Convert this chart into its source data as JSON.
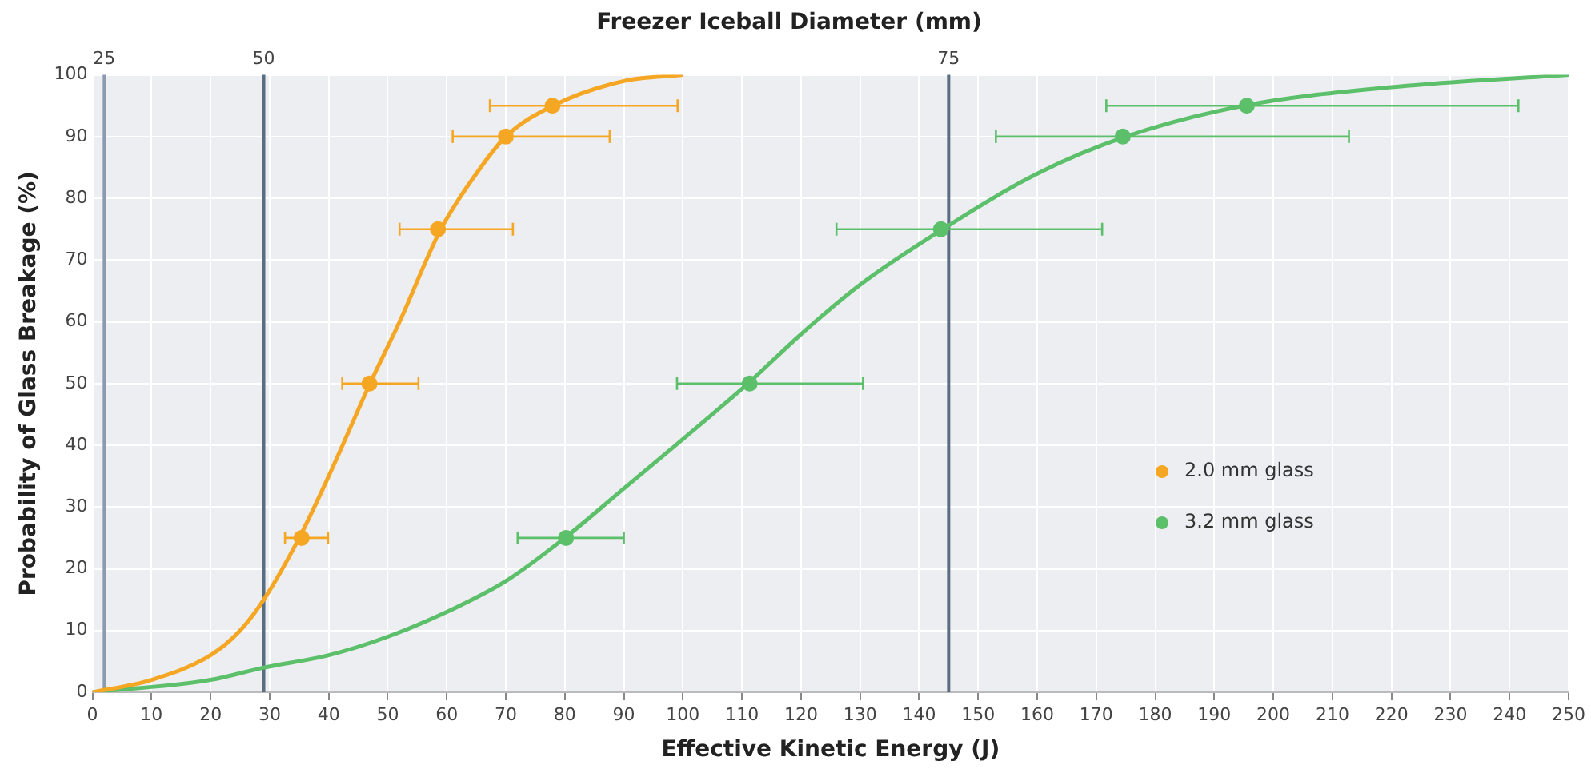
{
  "chart_data": {
    "type": "line",
    "title": "Freezer Iceball Diameter (mm)",
    "xlabel": "Effective Kinetic Energy (J)",
    "ylabel": "Probability of Glass Breakage (%)",
    "xlim": [
      0,
      250
    ],
    "xticks": [
      0,
      10,
      20,
      30,
      40,
      50,
      60,
      70,
      80,
      90,
      100,
      110,
      120,
      130,
      140,
      150,
      160,
      170,
      180,
      190,
      200,
      210,
      220,
      230,
      240,
      250
    ],
    "ylim": [
      0,
      100
    ],
    "yticks": [
      0,
      10,
      20,
      30,
      40,
      50,
      60,
      70,
      80,
      90,
      100
    ],
    "grid": true,
    "legend": "bottom right",
    "line_style": "solid",
    "ref_lines": [
      {
        "axis": "x",
        "value": 2,
        "color": "#8a9bb0"
      },
      {
        "axis": "x",
        "value": 29,
        "color": "#5a6e82"
      },
      {
        "axis": "x",
        "value": 145,
        "color": "#5a6e82"
      }
    ],
    "annotations": [
      {
        "text": "25",
        "x": 2,
        "y": 100
      },
      {
        "text": "50",
        "x": 29,
        "y": 100
      },
      {
        "text": "75",
        "x": 145,
        "y": 100
      }
    ],
    "series": [
      {
        "type": "line",
        "marker": "none",
        "color": "#f5a623",
        "x": [
          0,
          10,
          20,
          25,
          29,
          35,
          40,
          47,
          52,
          59,
          65,
          70,
          78,
          90,
          100
        ],
        "values": [
          0,
          2,
          6,
          10,
          15,
          25,
          35,
          50,
          60,
          75,
          84,
          90,
          95,
          99,
          100
        ]
      },
      {
        "type": "line",
        "marker": "none",
        "color": "#5cbf6a",
        "x": [
          0,
          20,
          29,
          40,
          50,
          60,
          70,
          80,
          90,
          100,
          111,
          120,
          130,
          144,
          160,
          175,
          195,
          220,
          250
        ],
        "values": [
          0,
          2,
          4,
          6,
          9,
          13,
          18,
          25,
          33,
          41,
          50,
          58,
          66,
          75,
          84,
          90,
          95,
          98,
          100
        ]
      },
      {
        "type": "scatter",
        "name": "2.0 mm glass",
        "marker": "circle",
        "color": "#f5a623",
        "x": [
          35.4,
          46.9,
          58.5,
          70,
          77.9
        ],
        "values": [
          25,
          50,
          75,
          90,
          95
        ],
        "xerrors": [
          [
            32.6,
            39.9
          ],
          [
            42.3,
            55.2
          ],
          [
            52,
            71.2
          ],
          [
            61,
            87.6
          ],
          [
            67.3,
            99.1
          ]
        ]
      },
      {
        "type": "scatter",
        "name": "3.2 mm glass",
        "marker": "circle",
        "color": "#5cbf6a",
        "x": [
          80.2,
          111.3,
          143.7,
          174.5,
          195.5
        ],
        "values": [
          25,
          50,
          75,
          90,
          95
        ],
        "xerrors": [
          [
            72,
            90
          ],
          [
            99,
            130.5
          ],
          [
            126,
            171
          ],
          [
            153,
            212.8
          ],
          [
            171.7,
            241.5
          ]
        ]
      }
    ]
  }
}
